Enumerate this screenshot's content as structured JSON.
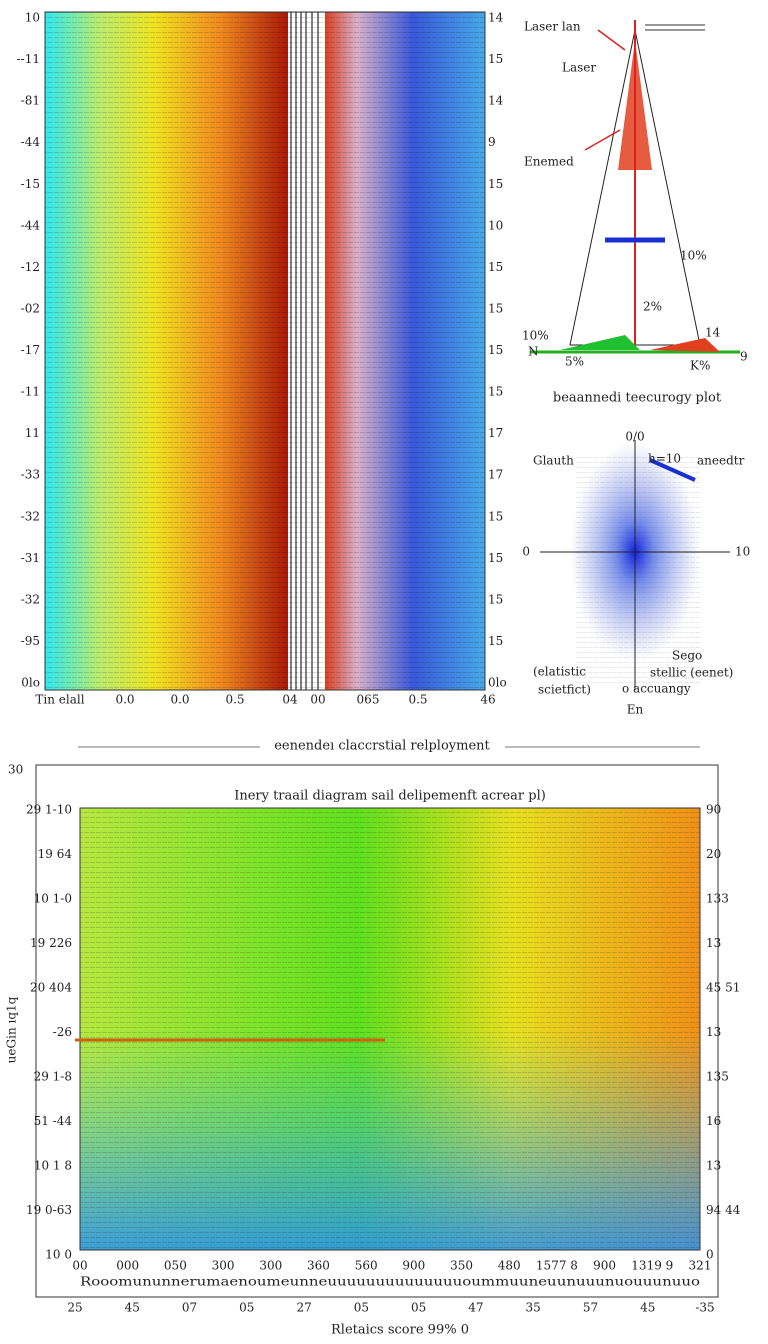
{
  "top_panel": {
    "left_ticks": [
      "10",
      "-‑11",
      "-81",
      "-44",
      "-15",
      "-44",
      "-12",
      "-02",
      "-17",
      "-11",
      "11",
      "-33",
      "-32",
      "-31",
      "-32",
      "-95",
      "0lo"
    ],
    "right_ticks": [
      "14",
      "15",
      "14",
      "9",
      "15",
      "10",
      "15",
      "15",
      "15",
      "15",
      "17",
      "17",
      "15",
      "15",
      "15",
      "15",
      "0lo"
    ],
    "bottom_ticks": [
      "Tin elall",
      "0.0",
      "0.0",
      "0.5",
      "04",
      "00",
      "065",
      "0.5",
      "46"
    ]
  },
  "diagram": {
    "labels": [
      "Laser lan",
      "Laser",
      "Enemed",
      "10%",
      "2%",
      "10%",
      "N",
      "9",
      "14",
      "5%",
      "K%"
    ],
    "caption": "beaannedi teecurogy plot"
  },
  "polar": {
    "labels": [
      "0/0",
      "Glauth",
      "h=10",
      "aneedtr",
      "0",
      "10",
      "Sego",
      "(elatistic",
      "stellic (eenet)",
      "scietfict)",
      "o accuangy",
      "En"
    ]
  },
  "separator": "eenendeı claccrstial relployment",
  "bottom_panel": {
    "title": "Inery traail diagram sail delipemenft acrear pl)",
    "y_label": "ueGin ıq1q",
    "outer_top": "30",
    "left_ticks": [
      "29  1-10",
      "19  64",
      "10  1-0",
      "19  226",
      "20  404",
      "-26",
      "29  1-8",
      "51  -44",
      "10  1 8",
      "19  0-63",
      "10  0"
    ],
    "right_ticks": [
      "90",
      "20",
      "133",
      "13",
      "45 51",
      "13",
      "135",
      "16",
      "13",
      "94 44",
      "0"
    ],
    "inner_x_ticks": [
      "00",
      "000",
      "050",
      "300",
      "300",
      "360",
      "560",
      "900",
      "350",
      "480",
      "1577 8",
      "900",
      "1319 9",
      "321"
    ],
    "scribble": "Rooomununnerumaenoumeunneuuuuuuuuuuuuuuoummuuneuunuuunuouuunuuo",
    "outer_x_ticks": [
      "25",
      "45",
      "07",
      "05",
      "27",
      "05",
      "05",
      "47",
      "35",
      "57",
      "45",
      "-35"
    ],
    "x_label": "Rletaics score 99% 0"
  }
}
